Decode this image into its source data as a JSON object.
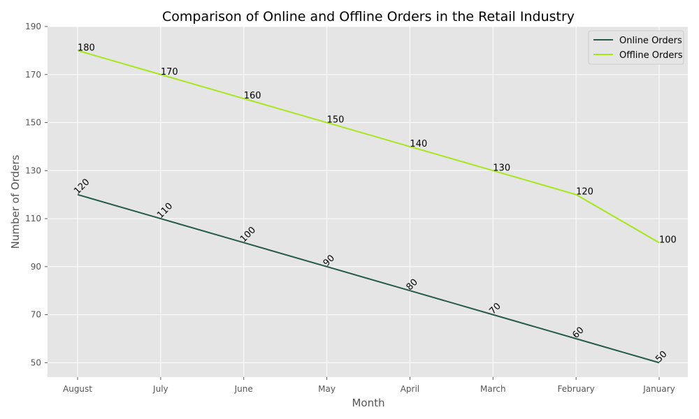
{
  "chart_data": {
    "type": "line",
    "title": "Comparison of Online and Offline Orders in the Retail Industry",
    "xlabel": "Month",
    "ylabel": "Number of Orders",
    "categories": [
      "August",
      "July",
      "June",
      "May",
      "April",
      "March",
      "February",
      "January"
    ],
    "ylim": [
      44,
      190
    ],
    "yticks": [
      50,
      70,
      90,
      110,
      130,
      150,
      170,
      190
    ],
    "grid": true,
    "legend_position": "top-right",
    "series": [
      {
        "name": "Online Orders",
        "color": "#255a48",
        "label_rotation": -45,
        "values": [
          120,
          110,
          100,
          90,
          80,
          70,
          60,
          50
        ]
      },
      {
        "name": "Offline Orders",
        "color": "#a6e61a",
        "label_rotation": 0,
        "values": [
          180,
          170,
          160,
          150,
          140,
          130,
          120,
          100
        ]
      }
    ]
  }
}
